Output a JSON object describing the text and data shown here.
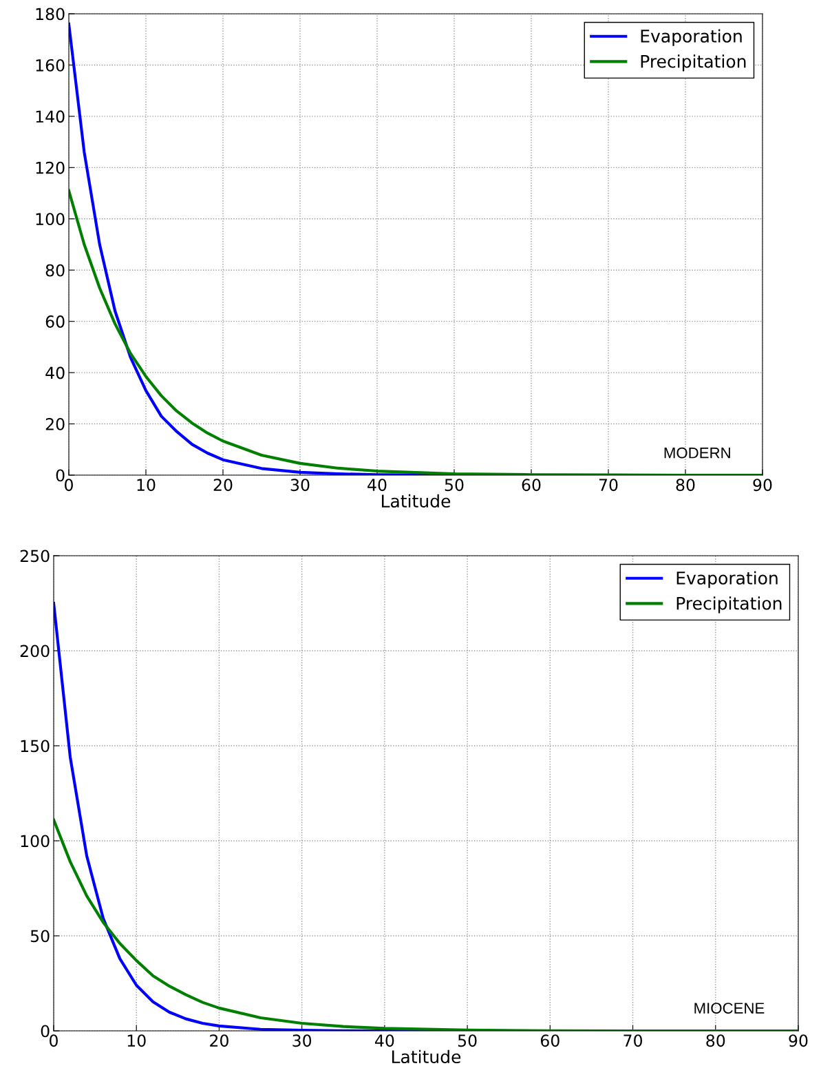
{
  "chart_data": [
    {
      "type": "line",
      "xlabel": "Latitude",
      "x": [
        0,
        2,
        4,
        6,
        8,
        10,
        12,
        14,
        16,
        18,
        20,
        25,
        30,
        35,
        40,
        50,
        60,
        70,
        80,
        90
      ],
      "xlim": [
        0,
        90
      ],
      "xticks": [
        0,
        10,
        20,
        30,
        40,
        50,
        60,
        70,
        80,
        90
      ],
      "ylim": [
        0,
        180
      ],
      "yticks": [
        0,
        20,
        40,
        60,
        80,
        100,
        120,
        140,
        160,
        180
      ],
      "grid": true,
      "legend": "top right",
      "line_style": "solid",
      "marker": "none",
      "annotations": [
        "MODERN"
      ],
      "series": [
        {
          "name": "Evaporation",
          "color": "#0000ff",
          "values": [
            176,
            126,
            90,
            64,
            46,
            33,
            23,
            17,
            12,
            8.6,
            6,
            2.6,
            1.1,
            0.5,
            0.2,
            0,
            0,
            null,
            null,
            null
          ]
        },
        {
          "name": "Precipitation",
          "color": "#008000",
          "values": [
            111,
            90,
            73,
            59,
            47.5,
            38.5,
            31,
            25,
            20.3,
            16.4,
            13.3,
            7.8,
            4.6,
            2.7,
            1.6,
            0.5,
            0.2,
            0.1,
            0,
            0
          ]
        }
      ]
    },
    {
      "type": "line",
      "xlabel": "Latitude",
      "x": [
        0,
        2,
        4,
        6,
        8,
        10,
        12,
        14,
        16,
        18,
        20,
        25,
        30,
        35,
        40,
        50,
        60,
        70,
        80,
        90
      ],
      "xlim": [
        0,
        90
      ],
      "xticks": [
        0,
        10,
        20,
        30,
        40,
        50,
        60,
        70,
        80,
        90
      ],
      "ylim": [
        0,
        250
      ],
      "yticks": [
        0,
        50,
        100,
        150,
        200,
        250
      ],
      "grid": true,
      "legend": "top right",
      "line_style": "solid",
      "marker": "none",
      "annotations": [
        "MIOCENE"
      ],
      "series": [
        {
          "name": "Evaporation",
          "color": "#0000ff",
          "values": [
            225,
            144,
            92,
            59,
            38,
            24,
            15.3,
            9.8,
            6.3,
            4,
            2.6,
            0.8,
            0.3,
            0.1,
            0,
            0,
            null,
            null,
            null,
            null
          ]
        },
        {
          "name": "Precipitation",
          "color": "#008000",
          "values": [
            111,
            89,
            71,
            57,
            46,
            37,
            29,
            23.5,
            19,
            15,
            12,
            6.9,
            4,
            2.3,
            1.3,
            0.4,
            0.1,
            0,
            0,
            0
          ]
        }
      ]
    }
  ]
}
